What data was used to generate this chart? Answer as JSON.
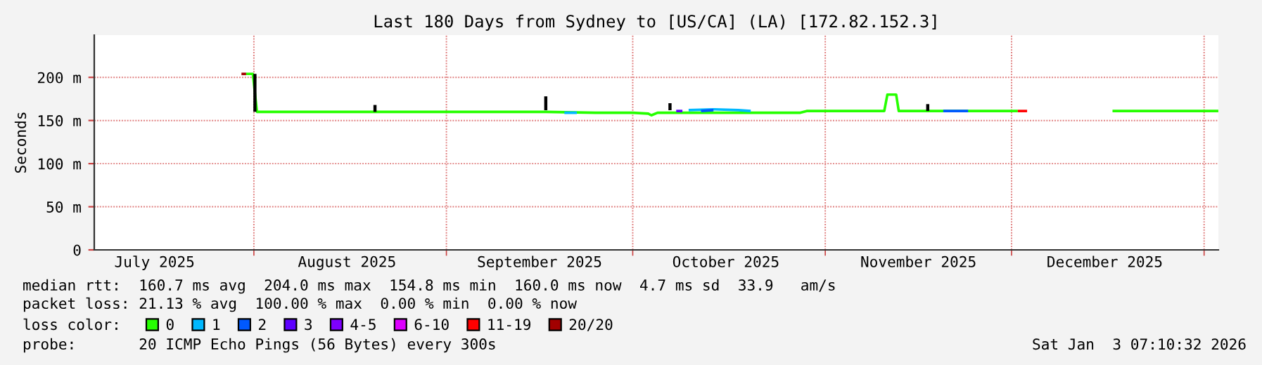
{
  "chart_data": {
    "type": "line",
    "title": "Last 180 Days from Sydney to [US/CA] (LA) [172.82.152.3]",
    "ylabel": "Seconds",
    "xlim": [
      "2025-07-06T07:10",
      "2026-01-03T07:10"
    ],
    "xticks": [
      {
        "value": "2025-07-16",
        "label": "July 2025"
      },
      {
        "value": "2025-08-01",
        "label": null
      },
      {
        "value": "2025-08-16",
        "label": "August 2025"
      },
      {
        "value": "2025-09-01",
        "label": null
      },
      {
        "value": "2025-09-16",
        "label": "September 2025"
      },
      {
        "value": "2025-10-01",
        "label": null
      },
      {
        "value": "2025-10-16",
        "label": "October 2025"
      },
      {
        "value": "2025-11-01",
        "label": null
      },
      {
        "value": "2025-11-16",
        "label": "November 2025"
      },
      {
        "value": "2025-12-01",
        "label": null
      },
      {
        "value": "2025-12-16",
        "label": "December 2025"
      },
      {
        "value": "2026-01-01",
        "label": null
      }
    ],
    "ylim": [
      0,
      249
    ],
    "yticks": [
      0,
      {
        "value": 50,
        "label": "50 m"
      },
      {
        "value": 100,
        "label": "100 m"
      },
      {
        "value": 150,
        "label": "150 m"
      },
      {
        "value": 200,
        "label": "200 m"
      }
    ],
    "grid": true,
    "legend": "bottom",
    "line_style": "solid",
    "series": [
      {
        "name": "0",
        "color": "#26ff00",
        "x": [
          "2025-07-30T18:00",
          "2025-07-31T20:00",
          "2025-08-01T12:00",
          "2025-08-20",
          "2025-09-01",
          "2025-09-17",
          "2025-09-25",
          "2025-10-01",
          "2025-10-03T12:00",
          "2025-10-04",
          "2025-10-05",
          "2025-10-20",
          "2025-10-28",
          "2025-10-29",
          "2025-11-10",
          "2025-11-10T12:00",
          "2025-11-11",
          "2025-11-12T10:00",
          "2025-11-12T20:00",
          "2025-11-20",
          "2025-12-02",
          "2025-12-03T08:00",
          "2025-12-17T06:00",
          "2025-12-30",
          "2026-01-03T07:00"
        ],
        "values": [
          204,
          204,
          160,
          160,
          160,
          160,
          159,
          159,
          158,
          156,
          159,
          159,
          159,
          161,
          161,
          161,
          180,
          180,
          161,
          161,
          161,
          null,
          161,
          161,
          161
        ]
      },
      {
        "name": "1",
        "color": "#00b8ff",
        "x": [
          "2025-09-20",
          "2025-09-22",
          "2025-09-23",
          "2025-10-10",
          "2025-10-14",
          "2025-10-18",
          "2025-10-20"
        ],
        "values": [
          159,
          159,
          null,
          162,
          163,
          162,
          161
        ]
      },
      {
        "name": "2",
        "color": "#0059ff",
        "x": [
          "2025-10-12",
          "2025-10-14",
          "2025-10-15",
          "2025-11-20",
          "2025-11-24"
        ],
        "values": [
          161,
          162,
          null,
          161,
          161
        ]
      },
      {
        "name": "3",
        "color": "#5e00ff",
        "x": [
          "2025-10-08",
          "2025-10-09"
        ],
        "values": [
          161,
          161
        ]
      },
      {
        "name": "4-5",
        "color": "#7e00ff"
      },
      {
        "name": "6-10",
        "color": "#dd00ff"
      },
      {
        "name": "11-19",
        "color": "#ff0000",
        "x": [
          "2025-12-02",
          "2025-12-03T12:00"
        ],
        "values": [
          161,
          161
        ]
      },
      {
        "name": "20/20",
        "color": "#a10000",
        "x": [
          "2025-07-30T00:00",
          "2025-07-30T18:00"
        ],
        "values": [
          204,
          204
        ]
      },
      {
        "color": "#000000",
        "x": [
          "2025-08-01T04:00",
          "2025-08-01T04:00",
          "2025-08-10",
          "2025-09-17",
          "2025-09-17",
          "2025-09-25",
          "2025-10-07",
          "2025-10-07"
        ],
        "values": [
          204,
          160,
          null,
          162,
          178,
          null,
          162,
          170
        ]
      },
      {
        "color": "#000000",
        "x": [
          "2025-08-20T12:00",
          "2025-08-20T12:00"
        ],
        "values": [
          160,
          168
        ]
      },
      {
        "color": "#000000",
        "x": [
          "2025-11-17T12:00",
          "2025-11-17T12:00"
        ],
        "values": [
          161,
          169
        ]
      }
    ],
    "annotations": [
      "median rtt:  160.7 ms avg  204.0 ms max  154.8 ms min  160.0 ms now  4.7 ms sd  33.9   am/s",
      "packet loss: 21.13 % avg  100.00 % max  0.00 % min  0.00 % now",
      "loss color:",
      "probe:       20 ICMP Echo Pings (56 Bytes) every 300s",
      "Sat Jan  3 07:10:32 2026"
    ]
  }
}
